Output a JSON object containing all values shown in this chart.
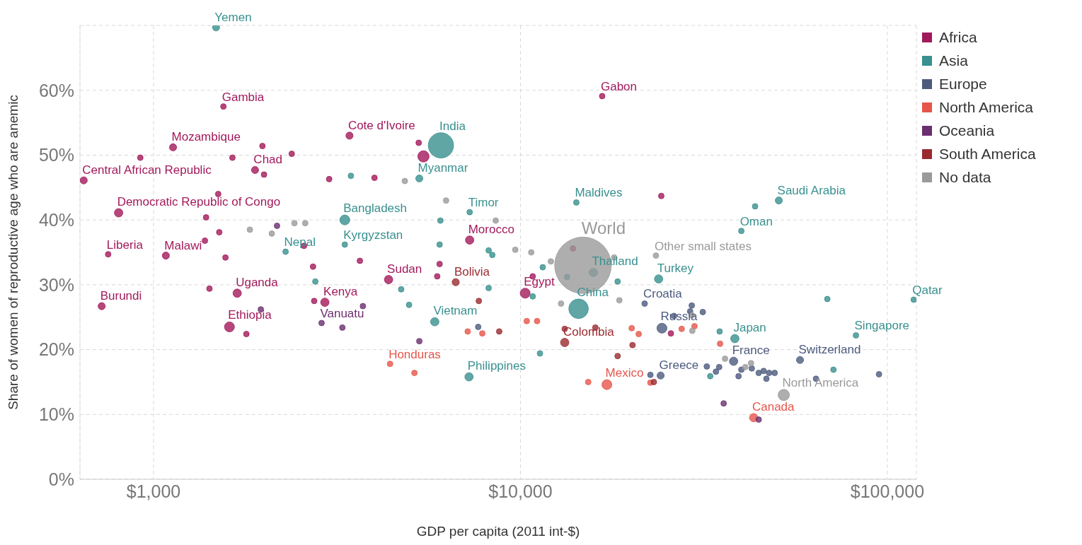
{
  "chart_data": {
    "type": "bubble",
    "xlabel": "GDP per capita (2011 int-$)",
    "ylabel": "Share of women of reproductive age who are anemic",
    "log": "x",
    "grid": true,
    "legend": "top right",
    "xlim": [
      630,
      120000
    ],
    "xticks": [
      {
        "value": 1000,
        "label": "$1,000"
      },
      {
        "value": 10000,
        "label": "$10,000"
      },
      {
        "value": 100000,
        "label": "$100,000"
      }
    ],
    "ylim": [
      0,
      70
    ],
    "yticks": [
      {
        "value": 0,
        "label": "0%"
      },
      {
        "value": 10,
        "label": "10%"
      },
      {
        "value": 20,
        "label": "20%"
      },
      {
        "value": 30,
        "label": "30%"
      },
      {
        "value": 40,
        "label": "40%"
      },
      {
        "value": 50,
        "label": "50%"
      },
      {
        "value": 60,
        "label": "60%"
      }
    ],
    "series": [
      {
        "name": "Africa",
        "color": "#a2195b",
        "x": [
          1550,
          1130,
          1890,
          645,
          803,
          752,
          1080,
          722,
          1690,
          1610,
          2930,
          4370,
          3420,
          7270,
          10300,
          16700,
          5440,
          920,
          1980,
          1640,
          2380,
          2000,
          1380,
          1390,
          1500,
          1510,
          1570,
          1420,
          1790,
          3010,
          4000,
          2570,
          2720,
          2740,
          3650,
          5280,
          6020,
          5930,
          10800,
          13900,
          24200,
          25700
        ],
        "values": [
          57.5,
          51.2,
          47.7,
          46.1,
          41.1,
          34.7,
          34.5,
          26.7,
          28.7,
          23.5,
          27.3,
          30.8,
          53.0,
          36.9,
          28.7,
          59.1,
          49.8,
          49.6,
          51.4,
          49.6,
          50.2,
          47.0,
          36.8,
          40.4,
          44.0,
          38.1,
          34.2,
          29.4,
          22.4,
          46.3,
          46.5,
          36.0,
          32.8,
          27.5,
          33.7,
          51.9,
          33.2,
          31.3,
          31.3,
          35.6,
          43.7,
          22.5
        ],
        "sizes": [
          0.01,
          0.016,
          0.016,
          0.016,
          0.022,
          0.01,
          0.016,
          0.016,
          0.022,
          0.031,
          0.022,
          0.022,
          0.016,
          0.022,
          0.031,
          0.01,
          0.04,
          0.01,
          0.01,
          0.01,
          0.01,
          0.01,
          0.01,
          0.01,
          0.01,
          0.01,
          0.01,
          0.01,
          0.01,
          0.01,
          0.01,
          0.01,
          0.01,
          0.01,
          0.01,
          0.01,
          0.01,
          0.01,
          0.01,
          0.01,
          0.01,
          0.01
        ]
      },
      {
        "name": "Asia",
        "color": "#38908f",
        "x": [
          1480,
          6070,
          5300,
          3320,
          3320,
          2290,
          7270,
          14200,
          15800,
          14400,
          5840,
          7240,
          23800,
          40000,
          50600,
          38400,
          82100,
          118000,
          3450,
          6050,
          6020,
          2760,
          4730,
          4970,
          8190,
          8380,
          11500,
          13400,
          18400,
          11300,
          43600,
          34900,
          68600,
          71300,
          32900,
          8190,
          10800
        ],
        "values": [
          69.7,
          51.5,
          46.4,
          40.0,
          36.2,
          35.1,
          41.2,
          42.7,
          31.9,
          26.3,
          24.3,
          15.8,
          30.9,
          38.3,
          43.0,
          21.7,
          22.2,
          27.7,
          46.8,
          39.9,
          36.2,
          30.5,
          29.3,
          26.9,
          35.3,
          34.6,
          32.7,
          31.2,
          30.5,
          19.4,
          42.1,
          22.8,
          27.8,
          16.9,
          15.9,
          29.5,
          28.2
        ],
        "sizes": [
          0.016,
          0.2,
          0.016,
          0.031,
          0.01,
          0.01,
          0.01,
          0.01,
          0.022,
          0.12,
          0.022,
          0.022,
          0.022,
          0.01,
          0.016,
          0.022,
          0.01,
          0.01,
          0.01,
          0.01,
          0.01,
          0.01,
          0.01,
          0.01,
          0.01,
          0.01,
          0.01,
          0.01,
          0.01,
          0.01,
          0.01,
          0.01,
          0.01,
          0.01,
          0.01,
          0.01,
          0.01
        ]
      },
      {
        "name": "Europe",
        "color": "#4c5a7e",
        "x": [
          21800,
          24300,
          38100,
          24100,
          57800,
          26200,
          29000,
          31400,
          29300,
          32200,
          34100,
          34800,
          39300,
          40000,
          42700,
          44600,
          46000,
          47600,
          46800,
          49300,
          22600,
          94900,
          63900,
          7670
        ],
        "values": [
          27.1,
          23.3,
          18.2,
          16.0,
          18.4,
          25.2,
          25.9,
          25.8,
          26.8,
          17.4,
          16.6,
          17.3,
          15.9,
          16.9,
          17.1,
          16.4,
          16.7,
          16.4,
          15.5,
          16.4,
          16.1,
          16.2,
          15.5,
          23.5
        ],
        "sizes": [
          0.01,
          0.031,
          0.022,
          0.016,
          0.016,
          0.01,
          0.01,
          0.01,
          0.01,
          0.01,
          0.01,
          0.01,
          0.01,
          0.01,
          0.01,
          0.01,
          0.01,
          0.01,
          0.01,
          0.01,
          0.01,
          0.01,
          0.01,
          0.01
        ]
      },
      {
        "name": "North America",
        "color": "#e6554a",
        "x": [
          4410,
          17200,
          43200,
          7180,
          7870,
          5140,
          10400,
          11100,
          15300,
          20100,
          21000,
          27500,
          29800,
          35000,
          22600
        ],
        "values": [
          17.8,
          14.6,
          9.5,
          22.8,
          22.5,
          16.4,
          24.4,
          24.4,
          15.0,
          23.3,
          22.4,
          23.2,
          23.6,
          20.9,
          14.9
        ],
        "sizes": [
          0.01,
          0.031,
          0.022,
          0.01,
          0.01,
          0.01,
          0.01,
          0.01,
          0.01,
          0.01,
          0.01,
          0.01,
          0.01,
          0.01,
          0.01
        ]
      },
      {
        "name": "Oceania",
        "color": "#6b2e6f",
        "x": [
          2870,
          3720,
          3270,
          5300,
          35800,
          44600,
          1960,
          2170
        ],
        "values": [
          24.1,
          26.7,
          23.4,
          21.3,
          11.7,
          9.2,
          26.2,
          39.1
        ],
        "sizes": [
          0.01,
          0.01,
          0.01,
          0.01,
          0.01,
          0.01,
          0.01,
          0.01
        ]
      },
      {
        "name": "South America",
        "color": "#9a2a30",
        "x": [
          6660,
          13200,
          7700,
          8750,
          13200,
          18400,
          20200,
          16000,
          23100
        ],
        "values": [
          30.4,
          21.1,
          27.5,
          22.8,
          23.2,
          19.0,
          20.7,
          23.4,
          15.0
        ],
        "sizes": [
          0.016,
          0.022,
          0.01,
          0.01,
          0.01,
          0.01,
          0.01,
          0.01,
          0.01
        ]
      },
      {
        "name": "No data",
        "color": "#9a9a9a",
        "x": [
          14800,
          23400,
          52200,
          1830,
          2100,
          2420,
          2590,
          4840,
          6270,
          8560,
          9680,
          10700,
          12100,
          18000,
          18600,
          12900,
          29300,
          29400,
          36100,
          42500,
          41000
        ],
        "values": [
          33.0,
          34.5,
          13.0,
          38.5,
          37.9,
          39.5,
          39.5,
          46.0,
          43.0,
          39.9,
          35.4,
          35.0,
          33.6,
          34.2,
          27.6,
          27.1,
          25.3,
          22.9,
          18.6,
          17.9,
          17.3
        ],
        "sizes": [
          1,
          0.01,
          0.04,
          0.01,
          0.01,
          0.01,
          0.01,
          0.01,
          0.01,
          0.01,
          0.01,
          0.01,
          0.01,
          0.01,
          0.01,
          0.01,
          0.01,
          0.01,
          0.01,
          0.01,
          0.01
        ]
      }
    ],
    "annotations": [
      {
        "text": "Gambia",
        "x": 1550,
        "y": 57.5
      },
      {
        "text": "Mozambique",
        "x": 1130,
        "y": 51.2
      },
      {
        "text": "Chad",
        "x": 1890,
        "y": 47.7
      },
      {
        "text": "Central African Republic",
        "x": 645,
        "y": 46.1
      },
      {
        "text": "Democratic Republic of Congo",
        "x": 803,
        "y": 41.1
      },
      {
        "text": "Liberia",
        "x": 752,
        "y": 34.7
      },
      {
        "text": "Malawi",
        "x": 1080,
        "y": 34.5
      },
      {
        "text": "Burundi",
        "x": 722,
        "y": 26.7
      },
      {
        "text": "Uganda",
        "x": 1690,
        "y": 28.7
      },
      {
        "text": "Ethiopia",
        "x": 1610,
        "y": 23.5
      },
      {
        "text": "Kenya",
        "x": 2930,
        "y": 27.3
      },
      {
        "text": "Sudan",
        "x": 4370,
        "y": 30.8
      },
      {
        "text": "Cote d'Ivoire",
        "x": 3420,
        "y": 53.0
      },
      {
        "text": "Morocco",
        "x": 7270,
        "y": 36.9
      },
      {
        "text": "Egypt",
        "x": 10300,
        "y": 28.7
      },
      {
        "text": "Gabon",
        "x": 16700,
        "y": 59.1
      },
      {
        "text": "Yemen",
        "x": 1480,
        "y": 69.7
      },
      {
        "text": "India",
        "x": 6070,
        "y": 51.5
      },
      {
        "text": "Myanmar",
        "x": 5300,
        "y": 46.4
      },
      {
        "text": "Bangladesh",
        "x": 3320,
        "y": 40.0
      },
      {
        "text": "Kyrgyzstan",
        "x": 3320,
        "y": 36.2
      },
      {
        "text": "Nepal",
        "x": 2290,
        "y": 35.1
      },
      {
        "text": "Timor",
        "x": 7270,
        "y": 41.2
      },
      {
        "text": "Maldives",
        "x": 14200,
        "y": 42.7
      },
      {
        "text": "Thailand",
        "x": 15800,
        "y": 31.9
      },
      {
        "text": "China",
        "x": 14400,
        "y": 26.3
      },
      {
        "text": "Vietnam",
        "x": 5840,
        "y": 24.3
      },
      {
        "text": "Philippines",
        "x": 7240,
        "y": 15.8
      },
      {
        "text": "Turkey",
        "x": 23800,
        "y": 30.9
      },
      {
        "text": "Oman",
        "x": 40000,
        "y": 38.3
      },
      {
        "text": "Saudi Arabia",
        "x": 50600,
        "y": 43.0
      },
      {
        "text": "Japan",
        "x": 38400,
        "y": 21.7
      },
      {
        "text": "Singapore",
        "x": 82100,
        "y": 22.2
      },
      {
        "text": "Qatar",
        "x": 118000,
        "y": 27.7
      },
      {
        "text": "Croatia",
        "x": 21800,
        "y": 27.1
      },
      {
        "text": "Russia",
        "x": 24300,
        "y": 23.3
      },
      {
        "text": "France",
        "x": 38100,
        "y": 18.2
      },
      {
        "text": "Greece",
        "x": 24100,
        "y": 16.0
      },
      {
        "text": "Switzerland",
        "x": 57800,
        "y": 18.4
      },
      {
        "text": "Honduras",
        "x": 4410,
        "y": 17.8
      },
      {
        "text": "Mexico",
        "x": 17200,
        "y": 14.6
      },
      {
        "text": "Canada",
        "x": 43200,
        "y": 9.5
      },
      {
        "text": "Vanuatu",
        "x": 2870,
        "y": 24.1
      },
      {
        "text": "Bolivia",
        "x": 6660,
        "y": 30.4
      },
      {
        "text": "Colombia",
        "x": 13200,
        "y": 21.1
      },
      {
        "text": "World",
        "x": 14800,
        "y": 33.0
      },
      {
        "text": "Other small states",
        "x": 23400,
        "y": 34.5
      },
      {
        "text": "North America",
        "x": 52200,
        "y": 13.0
      }
    ]
  }
}
